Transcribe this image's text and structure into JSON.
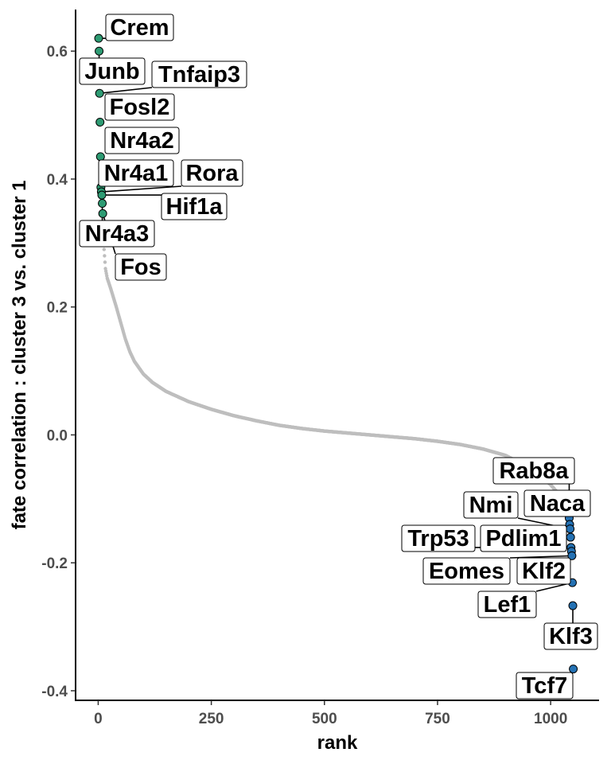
{
  "chart_data": {
    "type": "scatter",
    "xlabel": "rank",
    "ylabel": "fate correlation : cluster 3 vs. cluster 1",
    "xlim": [
      -50,
      1107
    ],
    "ylim": [
      -0.415,
      0.665
    ],
    "xticks": [
      0,
      250,
      500,
      750,
      1000
    ],
    "yticks": [
      -0.4,
      -0.2,
      0.0,
      0.2,
      0.4,
      0.6
    ],
    "xtick_labels": [
      "0",
      "250",
      "500",
      "750",
      "1000"
    ],
    "ytick_labels": [
      "-0.4",
      "-0.2",
      "0.0",
      "0.2",
      "0.4",
      "0.6"
    ],
    "n_genes": 1050,
    "grid": false,
    "colors": {
      "background_points": "#bebebe",
      "positive_highlight": "#2e9b73",
      "negative_highlight": "#2471b3",
      "axis": "#000000",
      "tick_text": "#4d4d4d"
    },
    "background_curve": [
      [
        12,
        0.3
      ],
      [
        16,
        0.26
      ],
      [
        20,
        0.245
      ],
      [
        28,
        0.228
      ],
      [
        40,
        0.2
      ],
      [
        50,
        0.175
      ],
      [
        60,
        0.15
      ],
      [
        70,
        0.13
      ],
      [
        80,
        0.115
      ],
      [
        100,
        0.095
      ],
      [
        120,
        0.082
      ],
      [
        150,
        0.068
      ],
      [
        200,
        0.052
      ],
      [
        250,
        0.04
      ],
      [
        300,
        0.03
      ],
      [
        350,
        0.022
      ],
      [
        400,
        0.015
      ],
      [
        450,
        0.01
      ],
      [
        500,
        0.006
      ],
      [
        550,
        0.003
      ],
      [
        600,
        0.0
      ],
      [
        650,
        -0.003
      ],
      [
        700,
        -0.006
      ],
      [
        750,
        -0.01
      ],
      [
        800,
        -0.015
      ],
      [
        850,
        -0.022
      ],
      [
        900,
        -0.032
      ],
      [
        950,
        -0.05
      ],
      [
        980,
        -0.065
      ],
      [
        1000,
        -0.078
      ],
      [
        1015,
        -0.09
      ],
      [
        1025,
        -0.1
      ],
      [
        1035,
        -0.112
      ],
      [
        1040,
        -0.118
      ]
    ],
    "series": [
      {
        "name": "positive",
        "points": [
          {
            "gene": "Crem",
            "rank": 1,
            "value": 0.62
          },
          {
            "gene": "Junb",
            "rank": 2,
            "value": 0.6
          },
          {
            "gene": "Tnfaip3",
            "rank": 3,
            "value": 0.534
          },
          {
            "gene": "Fosl2",
            "rank": 4,
            "value": 0.489
          },
          {
            "gene": "Nr4a2",
            "rank": 5,
            "value": 0.435
          },
          {
            "gene": "Nr4a1",
            "rank": 6,
            "value": 0.387
          },
          {
            "gene": "Rora",
            "rank": 7,
            "value": 0.38
          },
          {
            "gene": "Hif1a",
            "rank": 8,
            "value": 0.375
          },
          {
            "gene": "Nr4a3",
            "rank": 9,
            "value": 0.362
          },
          {
            "gene": "Fos",
            "rank": 10,
            "value": 0.346
          }
        ]
      },
      {
        "name": "negative",
        "points": [
          {
            "gene": "Rab8a",
            "rank": 1041,
            "value": -0.13
          },
          {
            "gene": "Naca",
            "rank": 1042,
            "value": -0.14
          },
          {
            "gene": "Nmi",
            "rank": 1043,
            "value": -0.147
          },
          {
            "gene": "Pdlim1",
            "rank": 1044,
            "value": -0.16
          },
          {
            "gene": "Trp53",
            "rank": 1045,
            "value": -0.176
          },
          {
            "gene": "Klf2",
            "rank": 1046,
            "value": -0.182
          },
          {
            "gene": "Eomes",
            "rank": 1047,
            "value": -0.189
          },
          {
            "gene": "Lef1",
            "rank": 1048,
            "value": -0.231
          },
          {
            "gene": "Klf3",
            "rank": 1049,
            "value": -0.267
          },
          {
            "gene": "Tcf7",
            "rank": 1050,
            "value": -0.366
          }
        ]
      }
    ]
  }
}
